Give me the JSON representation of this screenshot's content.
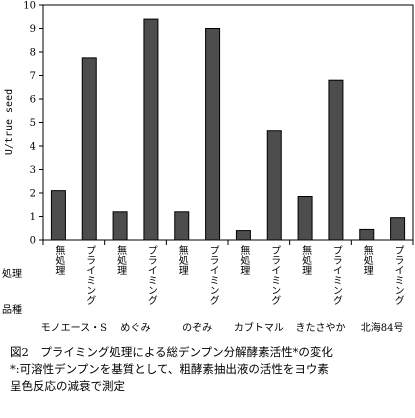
{
  "chart_data": {
    "type": "bar",
    "ylabel": "U/true seed",
    "ylim": [
      0,
      10
    ],
    "yticks": [
      0,
      1,
      2,
      3,
      4,
      5,
      6,
      7,
      8,
      9,
      10
    ],
    "row_labels": {
      "treatment": "処理",
      "variety": "品種"
    },
    "treatments": [
      "無処理",
      "プライミング"
    ],
    "varieties": [
      "モノエース・S",
      "めぐみ",
      "のぞみ",
      "カブトマル",
      "きたさやか",
      "北海84号"
    ],
    "categories": [
      "無処理",
      "プライミング",
      "無処理",
      "プライミング",
      "無処理",
      "プライミング",
      "無処理",
      "プライミング",
      "無処理",
      "プライミング",
      "無処理",
      "プライミング"
    ],
    "values": [
      2.1,
      7.75,
      1.2,
      9.4,
      1.2,
      9.0,
      0.4,
      4.65,
      1.85,
      6.8,
      0.45,
      0.95
    ],
    "bar_color": "#4d4d4d"
  },
  "caption": {
    "line1": "図2　プライミング処理による総デンプン分解酵素活性*の変化",
    "line2": "*:可溶性デンプンを基質として、粗酵素抽出液の活性をヨウ素",
    "line3": "呈色反応の減衰で測定"
  }
}
